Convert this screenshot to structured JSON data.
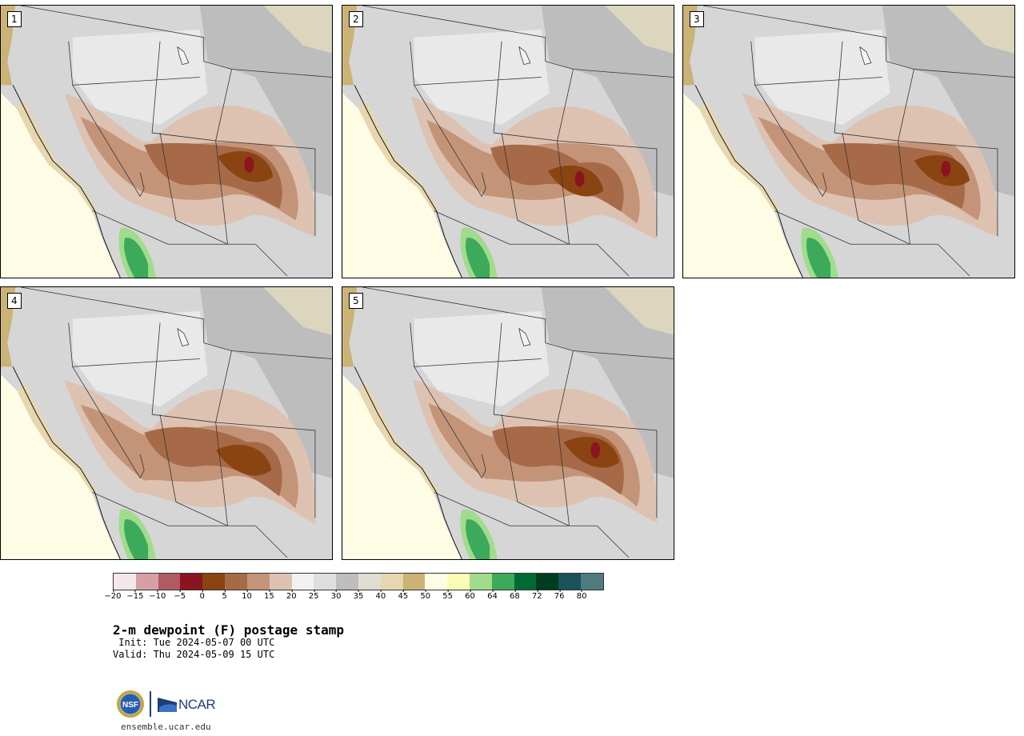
{
  "panels": [
    {
      "label": "1"
    },
    {
      "label": "2"
    },
    {
      "label": "3"
    },
    {
      "label": "4"
    },
    {
      "label": "5"
    }
  ],
  "colorbar": {
    "colors": [
      "#f5e6ea",
      "#d4a0a6",
      "#b05a62",
      "#8a1420",
      "#8a4412",
      "#a66a48",
      "#c49478",
      "#ddc2b2",
      "#f2f2f2",
      "#dedede",
      "#bebebe",
      "#e0ddd0",
      "#e6d7b0",
      "#cbb275",
      "#fffce6",
      "#fbfdb5",
      "#a0dc8c",
      "#3caa5a",
      "#006a32",
      "#003c1e",
      "#1a525a",
      "#4f7a7e"
    ],
    "ticks": [
      "−20",
      "−15",
      "−10",
      "−5",
      "0",
      "5",
      "10",
      "15",
      "20",
      "25",
      "30",
      "35",
      "40",
      "45",
      "50",
      "55",
      "60",
      "64",
      "68",
      "72",
      "76",
      "80"
    ]
  },
  "title": "2-m dewpoint (F) postage stamp",
  "init": " Init: Tue 2024-05-07 00 UTC",
  "valid": "Valid: Thu 2024-05-09 15 UTC",
  "logos": {
    "nsf": "NSF",
    "ncar": "NCAR"
  },
  "footer_url": "ensemble.ucar.edu"
}
